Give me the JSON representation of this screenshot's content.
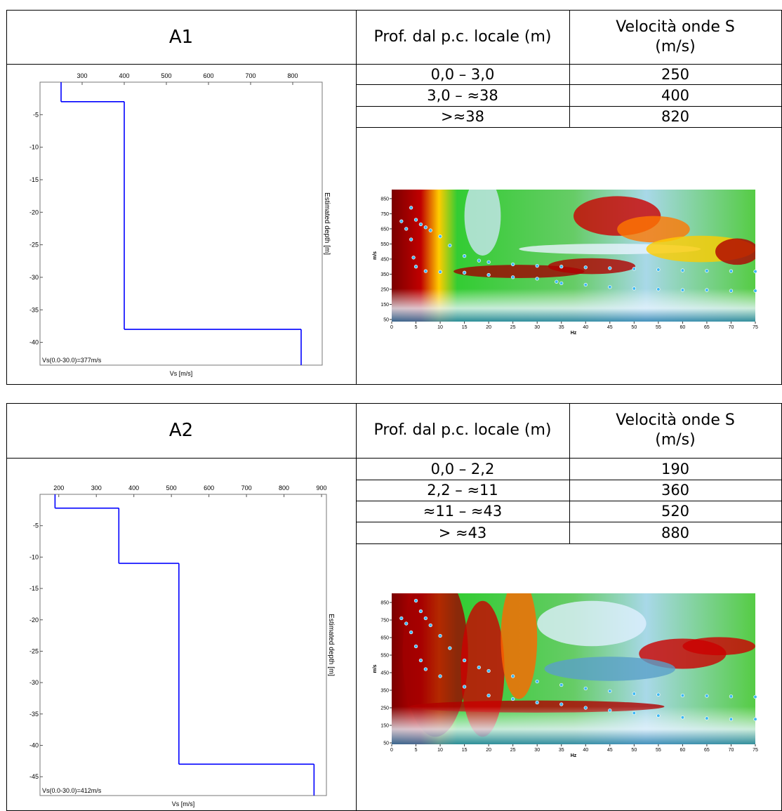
{
  "blocks": [
    {
      "title": "A1",
      "headers": [
        "Prof. dal p.c. locale (m)",
        "Velocità onde S (m/s)"
      ],
      "rows": [
        [
          "0,0 – 3,0",
          "250"
        ],
        [
          "3,0 – ≈38",
          "400"
        ],
        [
          ">≈38",
          "820"
        ]
      ],
      "profile_chart": {
        "type": "step",
        "x_label": "Vs [m/s]",
        "y_label": "Estimated depth [m]",
        "annotation": "Vs(0.0-30.0)=377m/s",
        "xlim": [
          200,
          870
        ],
        "xticks": [
          300,
          400,
          500,
          600,
          700,
          800
        ],
        "ylim": [
          -43.5,
          0
        ],
        "yticks": [
          -5,
          -10,
          -15,
          -20,
          -25,
          -30,
          -35,
          -40
        ],
        "velocities": [
          250,
          400,
          820
        ],
        "depths": [
          0,
          -3,
          -38
        ],
        "color": "#0000ff"
      },
      "spectrum": {
        "type": "scatter",
        "x_label": "Hz",
        "y_label": "m/s",
        "xlim": [
          0,
          75
        ],
        "xticks": [
          0,
          5,
          10,
          15,
          20,
          25,
          30,
          35,
          40,
          45,
          50,
          55,
          60,
          65,
          70,
          75
        ],
        "ylim": [
          36,
          910
        ],
        "yticks": [
          50,
          150,
          250,
          350,
          450,
          550,
          650,
          750,
          850
        ],
        "series": [
          {
            "color": "#3db8f5",
            "x": [
              4,
              5,
              6,
              7,
              8,
              10,
              12,
              15,
              18,
              20,
              25,
              30,
              35,
              40,
              45,
              50,
              55,
              60,
              65,
              70,
              75
            ],
            "values": [
              790,
              710,
              680,
              660,
              640,
              600,
              540,
              470,
              440,
              430,
              415,
              405,
              400,
              395,
              390,
              385,
              380,
              375,
              372,
              370,
              368
            ]
          },
          {
            "color": "#3db8f5",
            "x": [
              2,
              3,
              4,
              4.5,
              5,
              7,
              10,
              15,
              20,
              25,
              30,
              34,
              35,
              40,
              45,
              50,
              55,
              60,
              65,
              70,
              75
            ],
            "values": [
              700,
              650,
              580,
              460,
              400,
              370,
              365,
              360,
              345,
              330,
              320,
              300,
              290,
              280,
              265,
              255,
              250,
              245,
              245,
              240,
              240
            ]
          }
        ]
      }
    },
    {
      "title": "A2",
      "headers": [
        "Prof. dal p.c. locale (m)",
        "Velocità onde S (m/s)"
      ],
      "rows": [
        [
          "0,0 – 2,2",
          "190"
        ],
        [
          "2,2 – ≈11",
          "360"
        ],
        [
          "≈11 – ≈43",
          "520"
        ],
        [
          "> ≈43",
          "880"
        ]
      ],
      "profile_chart": {
        "type": "step",
        "x_label": "Vs [m/s]",
        "y_label": "Estimated depth [m]",
        "annotation": "Vs(0.0-30.0)=412m/s",
        "xlim": [
          150,
          913
        ],
        "xticks": [
          200,
          300,
          400,
          500,
          600,
          700,
          800,
          900
        ],
        "ylim": [
          -48,
          0
        ],
        "yticks": [
          -5,
          -10,
          -15,
          -20,
          -25,
          -30,
          -35,
          -40,
          -45
        ],
        "velocities": [
          190,
          360,
          520,
          880
        ],
        "depths": [
          0,
          -2.2,
          -11,
          -43
        ],
        "color": "#0000ff"
      },
      "spectrum": {
        "type": "scatter",
        "x_label": "Hz",
        "y_label": "m/s",
        "xlim": [
          0,
          75
        ],
        "xticks": [
          0,
          5,
          10,
          15,
          20,
          25,
          30,
          35,
          40,
          45,
          50,
          55,
          60,
          65,
          70,
          75
        ],
        "ylim": [
          42,
          902
        ],
        "yticks": [
          50,
          150,
          250,
          350,
          450,
          550,
          650,
          750,
          850
        ],
        "series": [
          {
            "color": "#3db8f5",
            "x": [
              5,
              6,
              7,
              8,
              10,
              12,
              15,
              18,
              20,
              25,
              30,
              35,
              40,
              45,
              50,
              55,
              60,
              65,
              70,
              75
            ],
            "values": [
              860,
              800,
              760,
              720,
              660,
              590,
              520,
              480,
              460,
              430,
              400,
              380,
              360,
              345,
              330,
              325,
              320,
              318,
              315,
              312
            ]
          },
          {
            "color": "#3db8f5",
            "x": [
              2,
              3,
              4,
              5,
              6,
              7,
              10,
              15,
              20,
              25,
              30,
              35,
              40,
              45,
              50,
              55,
              60,
              65,
              70,
              75
            ],
            "values": [
              760,
              730,
              680,
              600,
              520,
              470,
              430,
              370,
              320,
              300,
              280,
              270,
              250,
              235,
              220,
              205,
              195,
              190,
              185,
              185
            ]
          }
        ]
      }
    }
  ]
}
